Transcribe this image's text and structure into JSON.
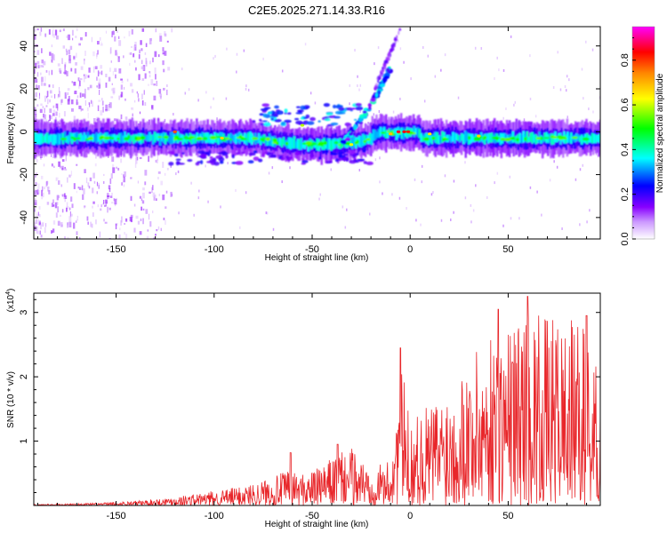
{
  "figure": {
    "title": "C2E5.2025.271.14.33.R16"
  },
  "chart_data": [
    {
      "type": "heatmap",
      "xlabel": "Height of straight line (km)",
      "ylabel": "Frequency (Hz)",
      "xlim": [
        -192,
        97
      ],
      "ylim": [
        -50,
        49
      ],
      "x_ticks": [
        -150,
        -100,
        -50,
        0,
        50
      ],
      "y_ticks": [
        -40,
        -20,
        0,
        20,
        40
      ],
      "colorbar": {
        "label": "Normalized spectral amplitude",
        "range": [
          0,
          0.95
        ],
        "ticks": [
          0.0,
          0.2,
          0.4,
          0.6,
          0.8
        ],
        "tick_labels": [
          "0.0",
          "0.2",
          "0.4",
          "0.6",
          "0.8"
        ],
        "colors": [
          "#ffffff",
          "#8800ff",
          "#0000ff",
          "#00ffff",
          "#00ff00",
          "#ffff00",
          "#ff8800",
          "#ff0000",
          "#ff00ff"
        ]
      },
      "features": [
        {
          "name": "main band",
          "x": [
            -192,
            97
          ],
          "center_freq": -3,
          "half_width": 5
        },
        {
          "name": "chirp",
          "x": [
            -35,
            -10
          ],
          "freq": [
            -5,
            30
          ]
        },
        {
          "name": "upper streak",
          "x": [
            -18,
            -5
          ],
          "freq": [
            20,
            48
          ]
        }
      ]
    },
    {
      "type": "line",
      "xlabel": "Height of straight line (km)",
      "ylabel": "SNR (10 * v/v)",
      "y_multiplier": "(x10^4)",
      "xlim": [
        -192,
        97
      ],
      "ylim": [
        0,
        3.3
      ],
      "x_ticks": [
        -150,
        -100,
        -50,
        0,
        50
      ],
      "y_ticks": [
        1,
        2,
        3
      ],
      "color": "#e8262a",
      "envelope": {
        "x": [
          -192,
          -170,
          -150,
          -130,
          -110,
          -95,
          -80,
          -70,
          -62,
          -55,
          -45,
          -38,
          -30,
          -20,
          -10,
          -5,
          0,
          10,
          20,
          30,
          40,
          50,
          60,
          70,
          80,
          90,
          97
        ],
        "y": [
          0.02,
          0.03,
          0.05,
          0.1,
          0.18,
          0.25,
          0.35,
          0.45,
          0.55,
          0.5,
          0.6,
          0.8,
          0.9,
          0.6,
          0.7,
          2.3,
          1.3,
          1.6,
          1.9,
          2.3,
          2.6,
          2.8,
          3.1,
          2.9,
          2.9,
          2.8,
          2.0
        ]
      },
      "peaks": [
        {
          "x": -61,
          "y": 0.82
        },
        {
          "x": -37,
          "y": 0.95
        },
        {
          "x": -5,
          "y": 2.45
        },
        {
          "x": 45,
          "y": 3.05
        },
        {
          "x": 60,
          "y": 3.25
        },
        {
          "x": 90,
          "y": 2.95
        }
      ]
    }
  ]
}
